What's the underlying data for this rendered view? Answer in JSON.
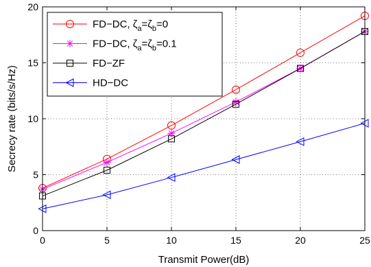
{
  "chart_data": {
    "type": "line",
    "xlabel": "Transmit Power(dB)",
    "ylabel": "Secrecy rate (bits/s/Hz)",
    "xlim": [
      0,
      25
    ],
    "ylim": [
      0,
      20
    ],
    "x_ticks": [
      "0",
      "5",
      "10",
      "15",
      "20",
      "25"
    ],
    "y_ticks": [
      "0",
      "5",
      "10",
      "15",
      "20"
    ],
    "grid": true,
    "legend_position": "top-left",
    "x": [
      0,
      5,
      10,
      15,
      20,
      25
    ],
    "series": [
      {
        "name": "FD−DC, ζa=ζb=0",
        "label_parts": [
          "FD−DC, ζ",
          "a",
          "=ζ",
          "b",
          "=0"
        ],
        "values": [
          3.8,
          6.4,
          9.4,
          12.6,
          15.9,
          19.2
        ],
        "color": "#ff0000",
        "marker": "circle"
      },
      {
        "name": "FD−DC, ζa=ζb=0.1",
        "label_parts": [
          "FD−DC, ζ",
          "a",
          "=ζ",
          "b",
          "=0.1"
        ],
        "values": [
          3.7,
          6.1,
          8.7,
          11.5,
          14.5,
          17.8
        ],
        "color": "#ff00ff",
        "marker": "asterisk"
      },
      {
        "name": "FD−ZF",
        "label_parts": [
          "FD−ZF"
        ],
        "values": [
          3.1,
          5.4,
          8.2,
          11.3,
          14.5,
          17.8
        ],
        "color": "#000000",
        "marker": "square"
      },
      {
        "name": "HD−DC",
        "label_parts": [
          "HD−DC"
        ],
        "values": [
          1.95,
          3.2,
          4.75,
          6.35,
          7.95,
          9.6
        ],
        "color": "#0000ff",
        "marker": "triangle-left"
      }
    ]
  }
}
